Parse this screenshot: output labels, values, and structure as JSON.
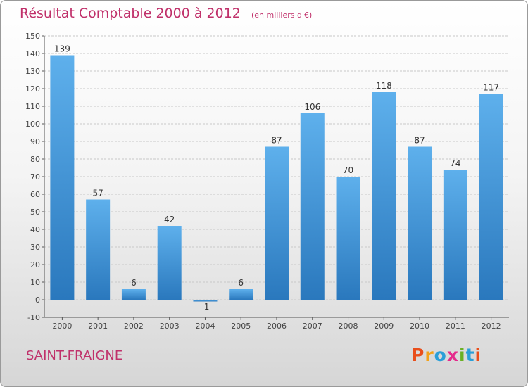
{
  "header": {
    "title": "Résultat Comptable 2000 à 2012",
    "unit": "(en milliers d'€)"
  },
  "footer": {
    "place": "SAINT-FRAIGNE",
    "logo_text": "Proxiti",
    "logo_colors": [
      "#e94e1b",
      "#f3a21a",
      "#2a9fd8",
      "#e42b8c",
      "#6ab023",
      "#2a9fd8",
      "#e94e1b"
    ]
  },
  "colors": {
    "title": "#c0306a",
    "bar_light": "#5eb0ec",
    "bar_dark": "#2a78bd",
    "axis": "#555555",
    "grid": "#c8c8c8"
  },
  "chart_data": {
    "type": "bar",
    "categories": [
      "2000",
      "2001",
      "2002",
      "2003",
      "2004",
      "2005",
      "2006",
      "2007",
      "2008",
      "2009",
      "2010",
      "2011",
      "2012"
    ],
    "values": [
      139,
      57,
      6,
      42,
      -1,
      6,
      87,
      106,
      70,
      118,
      87,
      74,
      117
    ],
    "ylim": [
      -10,
      150
    ],
    "yticks": [
      -10,
      0,
      10,
      20,
      30,
      40,
      50,
      60,
      70,
      80,
      90,
      100,
      110,
      120,
      130,
      140,
      150
    ],
    "grid": "horizontal",
    "legend": "none"
  }
}
